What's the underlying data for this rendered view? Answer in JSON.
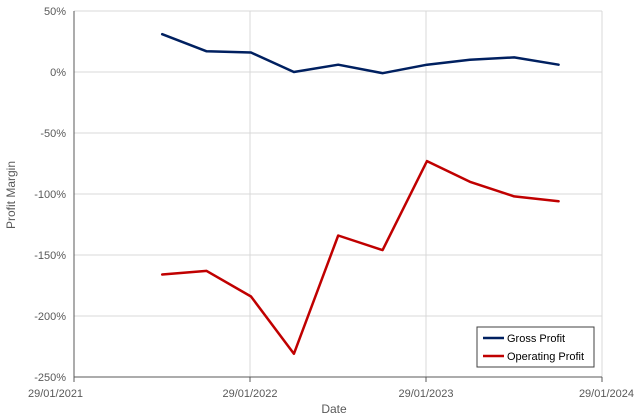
{
  "chart_data": {
    "type": "line",
    "title": "",
    "xlabel": "Date",
    "ylabel": "Profit Margin",
    "x_ticks": [
      "29/01/2021",
      "29/01/2022",
      "29/01/2023",
      "29/01/2024"
    ],
    "y_ticks": [
      "50%",
      "0%",
      "-50%",
      "-100%",
      "-150%",
      "-200%",
      "-250%"
    ],
    "ylim": [
      -250,
      50
    ],
    "xlim": [
      "2021-01-29",
      "2024-01-29"
    ],
    "grid": true,
    "legend_position": "bottom-right",
    "series": [
      {
        "name": "Gross Profit",
        "color": "#002060",
        "x": [
          "2021-07-31",
          "2021-10-31",
          "2022-01-31",
          "2022-04-30",
          "2022-07-31",
          "2022-10-31",
          "2023-01-31",
          "2023-04-30",
          "2023-07-31",
          "2023-10-31"
        ],
        "values": [
          31,
          17,
          16,
          0,
          6,
          -1,
          6,
          10,
          12,
          6
        ]
      },
      {
        "name": "Operating Profit",
        "color": "#C00000",
        "x": [
          "2021-07-31",
          "2021-10-31",
          "2022-01-31",
          "2022-04-30",
          "2022-07-31",
          "2022-10-31",
          "2023-01-31",
          "2023-04-30",
          "2023-07-31",
          "2023-10-31"
        ],
        "values": [
          -166,
          -163,
          -184,
          -231,
          -134,
          -146,
          -73,
          -90,
          -102,
          -106
        ]
      }
    ]
  }
}
